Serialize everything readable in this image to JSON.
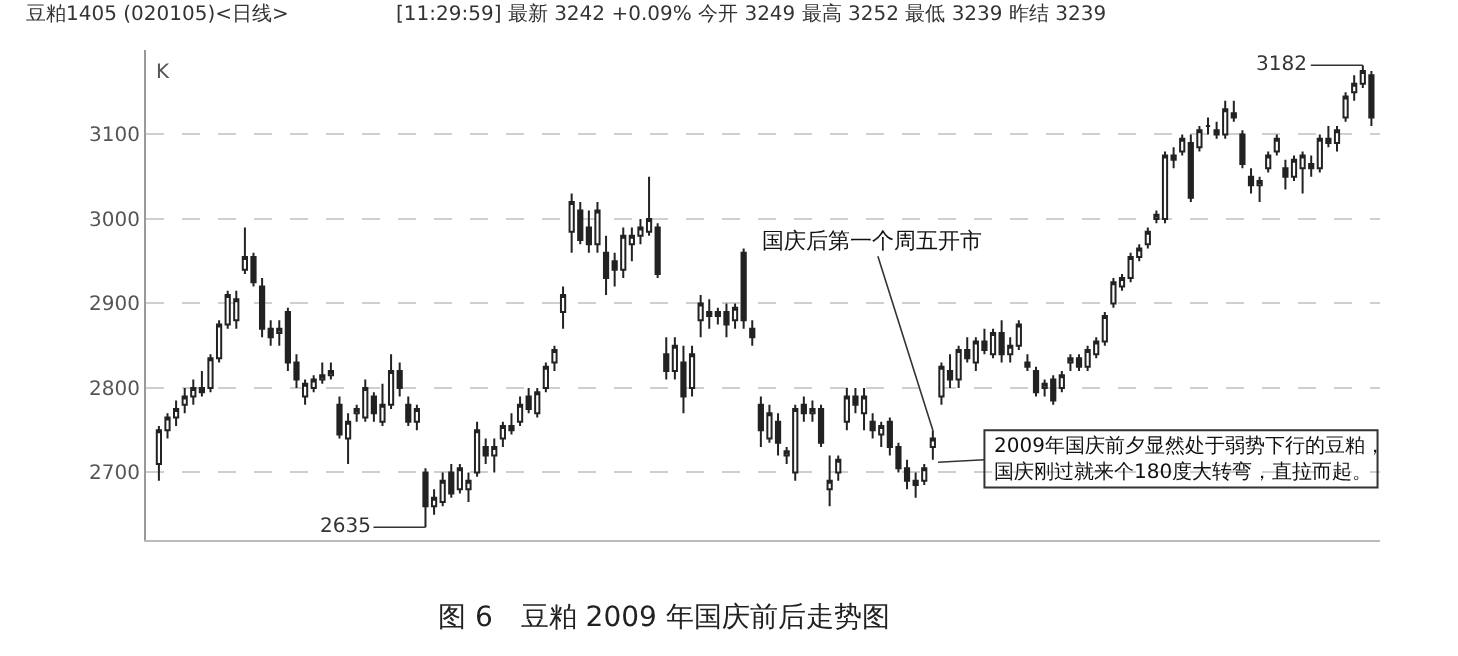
{
  "chart_data": {
    "type": "candlestick",
    "title": "图 6　豆粕 2009 年国庆前后走势图",
    "subtitle": "豆粕1405 (020105)<日线>",
    "annotations": [
      "[11:29:59] 最新 3242 +0.09% 今开 3249 最高 3252 最低 3239 昨结 3239",
      "K",
      "2635",
      "3182",
      "国庆后第一个周五开市",
      "2009年国庆前夕显然处于弱势下行的豆粕，",
      "国庆刚过就来个180度大转弯，直拉而起。"
    ],
    "color": "#222222",
    "ylim": [
      2620,
      3200
    ],
    "yticks": [
      2700,
      2800,
      2900,
      3000,
      3100
    ],
    "grid": "y",
    "tick_labels": "y",
    "categories": [
      null,
      null,
      null,
      null,
      null,
      null,
      null,
      null,
      null,
      null,
      null,
      null,
      null,
      null,
      null,
      null,
      null,
      null,
      null,
      null,
      null,
      null,
      null,
      null,
      null,
      null,
      null,
      null,
      null,
      null,
      null,
      null,
      null,
      null,
      null,
      null,
      null,
      null,
      null,
      null,
      null,
      null,
      null,
      null,
      null,
      null,
      null,
      null,
      null,
      null,
      null,
      null,
      null,
      null,
      null,
      null,
      null,
      null,
      null,
      null,
      null,
      null,
      null,
      null,
      null,
      null,
      null,
      null,
      null,
      null,
      null,
      null,
      null,
      null,
      null,
      null,
      null,
      null,
      null,
      null,
      null,
      null,
      null,
      null,
      null,
      null,
      null,
      null,
      null,
      null,
      null,
      null,
      null,
      null,
      null,
      null,
      null,
      null,
      null,
      null,
      null,
      null,
      null,
      null,
      null,
      null,
      null,
      null,
      null,
      null,
      null,
      null,
      null,
      null,
      null,
      null,
      null,
      null,
      null,
      null,
      null,
      null,
      null,
      null,
      null,
      null,
      null,
      null,
      null,
      null,
      null,
      null,
      null,
      null,
      null,
      null,
      null,
      null,
      null,
      null,
      null,
      null
    ],
    "ohlc": [
      [
        2710,
        2755,
        2690,
        2750
      ],
      [
        2750,
        2770,
        2740,
        2765
      ],
      [
        2765,
        2785,
        2755,
        2775
      ],
      [
        2780,
        2800,
        2770,
        2790
      ],
      [
        2790,
        2810,
        2780,
        2800
      ],
      [
        2800,
        2820,
        2790,
        2795
      ],
      [
        2800,
        2840,
        2795,
        2835
      ],
      [
        2835,
        2880,
        2830,
        2875
      ],
      [
        2875,
        2915,
        2870,
        2910
      ],
      [
        2880,
        2915,
        2870,
        2905
      ],
      [
        2940,
        2990,
        2935,
        2955
      ],
      [
        2955,
        2960,
        2920,
        2925
      ],
      [
        2920,
        2930,
        2860,
        2870
      ],
      [
        2870,
        2880,
        2850,
        2860
      ],
      [
        2865,
        2880,
        2850,
        2870
      ],
      [
        2890,
        2895,
        2820,
        2830
      ],
      [
        2830,
        2840,
        2800,
        2810
      ],
      [
        2790,
        2810,
        2780,
        2805
      ],
      [
        2800,
        2815,
        2795,
        2810
      ],
      [
        2810,
        2830,
        2805,
        2815
      ],
      [
        2815,
        2830,
        2810,
        2820
      ],
      [
        2780,
        2790,
        2740,
        2745
      ],
      [
        2740,
        2770,
        2710,
        2760
      ],
      [
        2770,
        2780,
        2760,
        2775
      ],
      [
        2765,
        2810,
        2760,
        2800
      ],
      [
        2790,
        2795,
        2760,
        2770
      ],
      [
        2760,
        2805,
        2755,
        2780
      ],
      [
        2780,
        2840,
        2775,
        2820
      ],
      [
        2820,
        2830,
        2790,
        2800
      ],
      [
        2780,
        2790,
        2755,
        2760
      ],
      [
        2760,
        2780,
        2750,
        2775
      ],
      [
        2700,
        2705,
        2635,
        2660
      ],
      [
        2660,
        2680,
        2650,
        2670
      ],
      [
        2665,
        2700,
        2660,
        2690
      ],
      [
        2700,
        2710,
        2670,
        2675
      ],
      [
        2680,
        2710,
        2675,
        2705
      ],
      [
        2680,
        2700,
        2665,
        2690
      ],
      [
        2700,
        2760,
        2695,
        2750
      ],
      [
        2730,
        2740,
        2710,
        2720
      ],
      [
        2720,
        2740,
        2700,
        2730
      ],
      [
        2740,
        2760,
        2730,
        2755
      ],
      [
        2755,
        2770,
        2745,
        2750
      ],
      [
        2760,
        2790,
        2755,
        2780
      ],
      [
        2790,
        2800,
        2770,
        2775
      ],
      [
        2770,
        2800,
        2765,
        2795
      ],
      [
        2800,
        2830,
        2795,
        2825
      ],
      [
        2830,
        2850,
        2820,
        2845
      ],
      [
        2890,
        2920,
        2870,
        2910
      ],
      [
        2985,
        3030,
        2960,
        3020
      ],
      [
        3010,
        3020,
        2970,
        2975
      ],
      [
        2990,
        3010,
        2960,
        2970
      ],
      [
        2970,
        3020,
        2960,
        3010
      ],
      [
        2960,
        2980,
        2910,
        2930
      ],
      [
        2950,
        2960,
        2920,
        2940
      ],
      [
        2940,
        2990,
        2930,
        2980
      ],
      [
        2970,
        2990,
        2950,
        2980
      ],
      [
        2980,
        3000,
        2970,
        2990
      ],
      [
        2985,
        3050,
        2980,
        3000
      ],
      [
        2990,
        2995,
        2930,
        2935
      ],
      [
        2840,
        2860,
        2810,
        2820
      ],
      [
        2820,
        2860,
        2810,
        2850
      ],
      [
        2830,
        2850,
        2770,
        2790
      ],
      [
        2800,
        2850,
        2790,
        2840
      ],
      [
        2880,
        2910,
        2860,
        2900
      ],
      [
        2890,
        2905,
        2870,
        2885
      ],
      [
        2885,
        2895,
        2875,
        2890
      ],
      [
        2890,
        2900,
        2860,
        2875
      ],
      [
        2880,
        2900,
        2870,
        2895
      ],
      [
        2960,
        2965,
        2870,
        2880
      ],
      [
        2870,
        2880,
        2850,
        2860
      ],
      [
        2780,
        2790,
        2730,
        2750
      ],
      [
        2740,
        2780,
        2735,
        2770
      ],
      [
        2760,
        2770,
        2720,
        2735
      ],
      [
        2720,
        2730,
        2710,
        2725
      ],
      [
        2700,
        2780,
        2690,
        2775
      ],
      [
        2780,
        2790,
        2760,
        2770
      ],
      [
        2770,
        2785,
        2760,
        2775
      ],
      [
        2775,
        2780,
        2730,
        2735
      ],
      [
        2680,
        2720,
        2660,
        2690
      ],
      [
        2700,
        2720,
        2690,
        2715
      ],
      [
        2760,
        2800,
        2750,
        2790
      ],
      [
        2790,
        2800,
        2770,
        2780
      ],
      [
        2770,
        2800,
        2750,
        2790
      ],
      [
        2760,
        2770,
        2740,
        2750
      ],
      [
        2745,
        2760,
        2730,
        2755
      ],
      [
        2760,
        2765,
        2720,
        2730
      ],
      [
        2730,
        2735,
        2700,
        2705
      ],
      [
        2705,
        2715,
        2680,
        2690
      ],
      [
        2690,
        2700,
        2670,
        2685
      ],
      [
        2690,
        2710,
        2685,
        2705
      ],
      [
        2730,
        2750,
        2715,
        2740
      ],
      [
        2790,
        2830,
        2780,
        2825
      ],
      [
        2820,
        2840,
        2800,
        2810
      ],
      [
        2810,
        2850,
        2800,
        2845
      ],
      [
        2845,
        2860,
        2830,
        2835
      ],
      [
        2830,
        2860,
        2820,
        2855
      ],
      [
        2855,
        2870,
        2840,
        2845
      ],
      [
        2840,
        2870,
        2835,
        2865
      ],
      [
        2865,
        2880,
        2830,
        2840
      ],
      [
        2840,
        2860,
        2830,
        2850
      ],
      [
        2850,
        2880,
        2845,
        2875
      ],
      [
        2830,
        2840,
        2820,
        2825
      ],
      [
        2820,
        2825,
        2790,
        2795
      ],
      [
        2800,
        2810,
        2790,
        2805
      ],
      [
        2810,
        2815,
        2780,
        2785
      ],
      [
        2800,
        2820,
        2795,
        2815
      ],
      [
        2830,
        2840,
        2820,
        2835
      ],
      [
        2835,
        2840,
        2820,
        2825
      ],
      [
        2825,
        2850,
        2820,
        2845
      ],
      [
        2840,
        2860,
        2835,
        2855
      ],
      [
        2855,
        2890,
        2850,
        2885
      ],
      [
        2900,
        2930,
        2895,
        2925
      ],
      [
        2920,
        2935,
        2915,
        2930
      ],
      [
        2930,
        2960,
        2925,
        2955
      ],
      [
        2955,
        2970,
        2950,
        2965
      ],
      [
        2970,
        2990,
        2965,
        2985
      ],
      [
        3000,
        3010,
        2995,
        3005
      ],
      [
        3000,
        3080,
        2995,
        3075
      ],
      [
        3075,
        3085,
        3060,
        3070
      ],
      [
        3080,
        3100,
        3075,
        3095
      ],
      [
        3090,
        3100,
        3020,
        3025
      ],
      [
        3085,
        3110,
        3080,
        3105
      ],
      [
        3110,
        3120,
        3100,
        3110
      ],
      [
        3105,
        3115,
        3095,
        3100
      ],
      [
        3100,
        3140,
        3095,
        3130
      ],
      [
        3125,
        3140,
        3115,
        3120
      ],
      [
        3100,
        3105,
        3060,
        3065
      ],
      [
        3050,
        3060,
        3030,
        3040
      ],
      [
        3040,
        3050,
        3020,
        3045
      ],
      [
        3060,
        3080,
        3055,
        3075
      ],
      [
        3080,
        3100,
        3075,
        3095
      ],
      [
        3060,
        3070,
        3035,
        3050
      ],
      [
        3050,
        3075,
        3045,
        3070
      ],
      [
        3060,
        3080,
        3030,
        3075
      ],
      [
        3065,
        3075,
        3050,
        3060
      ],
      [
        3060,
        3100,
        3055,
        3095
      ],
      [
        3095,
        3110,
        3085,
        3090
      ],
      [
        3090,
        3110,
        3080,
        3105
      ],
      [
        3120,
        3150,
        3115,
        3145
      ],
      [
        3150,
        3170,
        3140,
        3160
      ],
      [
        3160,
        3182,
        3155,
        3175
      ],
      [
        3170,
        3175,
        3110,
        3120
      ]
    ]
  }
}
